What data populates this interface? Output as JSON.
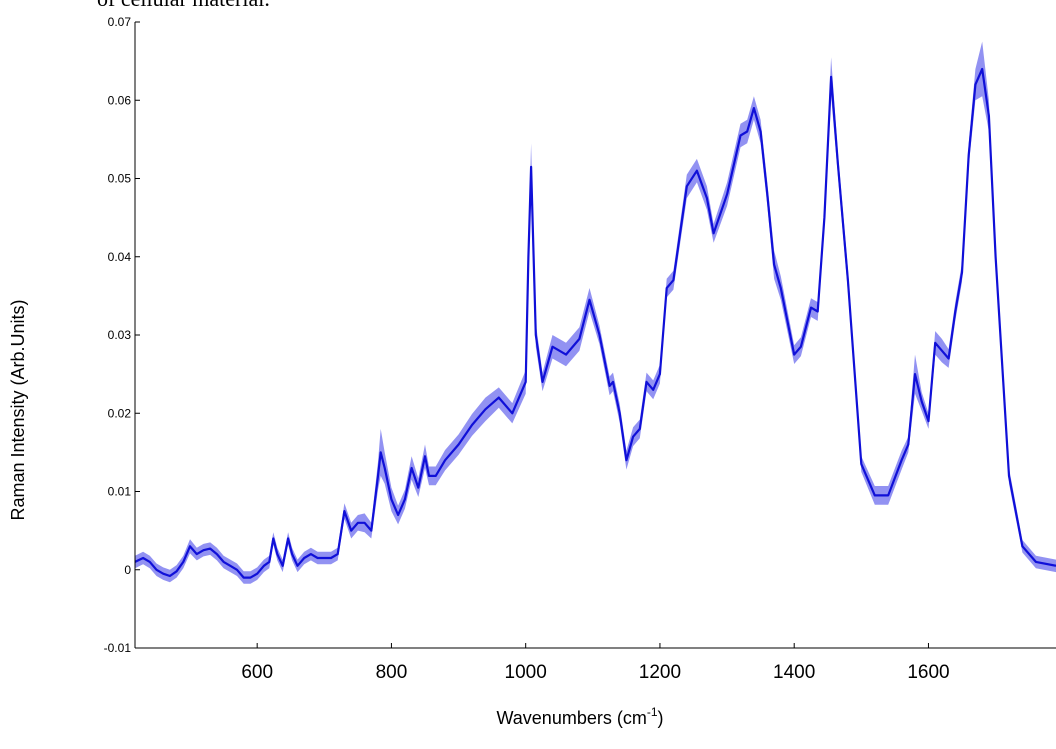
{
  "caption": "of cellular material.",
  "chart_data": {
    "type": "line",
    "title": "",
    "xlabel": "Wavenumbers (cm",
    "xlabel_superscript": "-1",
    "xlabel_suffix": ")",
    "ylabel": "Raman Intensity  (Arb.Units)",
    "xlim": [
      418,
      1790
    ],
    "ylim": [
      -0.01,
      0.07
    ],
    "x_ticks": [
      600,
      800,
      1000,
      1200,
      1400,
      1600
    ],
    "x_tick_labels": [
      "600",
      "800",
      "1000",
      "1200",
      "1400",
      "1600"
    ],
    "y_ticks": [
      -0.01,
      0,
      0.01,
      0.02,
      0.03,
      0.04,
      0.05,
      0.06,
      0.07
    ],
    "y_tick_labels": [
      "-0.01",
      "0",
      "0.01",
      "0.02",
      "0.03",
      "0.04",
      "0.05",
      "0.06",
      "0.07"
    ],
    "grid": false,
    "series": [
      {
        "line_color": "#1010d8",
        "band_color": "#7f7ff0",
        "x": [
          418,
          430,
          440,
          450,
          460,
          470,
          480,
          490,
          500,
          510,
          520,
          530,
          540,
          550,
          560,
          570,
          580,
          590,
          600,
          610,
          618,
          624,
          630,
          638,
          646,
          652,
          660,
          670,
          680,
          690,
          700,
          710,
          720,
          730,
          740,
          750,
          760,
          770,
          780,
          784,
          790,
          800,
          810,
          820,
          830,
          840,
          850,
          856,
          866,
          880,
          900,
          920,
          940,
          960,
          980,
          1000,
          1004,
          1008,
          1015,
          1025,
          1040,
          1060,
          1080,
          1095,
          1110,
          1125,
          1130,
          1140,
          1150,
          1160,
          1170,
          1180,
          1190,
          1200,
          1210,
          1220,
          1240,
          1255,
          1270,
          1280,
          1300,
          1320,
          1330,
          1340,
          1350,
          1360,
          1370,
          1380,
          1400,
          1410,
          1425,
          1435,
          1445,
          1455,
          1465,
          1480,
          1500,
          1520,
          1540,
          1560,
          1570,
          1580,
          1590,
          1600,
          1610,
          1620,
          1630,
          1640,
          1650,
          1660,
          1670,
          1680,
          1690,
          1700,
          1720,
          1740,
          1760,
          1790
        ],
        "y": [
          0.001,
          0.0015,
          0.001,
          0.0,
          -0.0005,
          -0.0008,
          -0.0002,
          0.001,
          0.003,
          0.002,
          0.0025,
          0.0027,
          0.002,
          0.001,
          0.0005,
          0.0,
          -0.001,
          -0.001,
          -0.0005,
          0.0005,
          0.001,
          0.004,
          0.002,
          0.0005,
          0.004,
          0.002,
          0.0005,
          0.0015,
          0.002,
          0.0015,
          0.0015,
          0.0015,
          0.002,
          0.0075,
          0.005,
          0.006,
          0.006,
          0.005,
          0.012,
          0.015,
          0.013,
          0.009,
          0.007,
          0.009,
          0.013,
          0.0105,
          0.0145,
          0.012,
          0.012,
          0.014,
          0.016,
          0.0185,
          0.0205,
          0.022,
          0.02,
          0.024,
          0.04,
          0.0515,
          0.03,
          0.024,
          0.0285,
          0.0275,
          0.0295,
          0.0345,
          0.03,
          0.0235,
          0.024,
          0.02,
          0.014,
          0.017,
          0.018,
          0.024,
          0.023,
          0.025,
          0.036,
          0.037,
          0.049,
          0.051,
          0.0475,
          0.043,
          0.048,
          0.0555,
          0.056,
          0.059,
          0.056,
          0.048,
          0.039,
          0.036,
          0.0275,
          0.0285,
          0.0335,
          0.033,
          0.045,
          0.063,
          0.052,
          0.037,
          0.0135,
          0.0095,
          0.0095,
          0.014,
          0.016,
          0.025,
          0.0215,
          0.019,
          0.029,
          0.028,
          0.027,
          0.033,
          0.038,
          0.053,
          0.062,
          0.064,
          0.058,
          0.04,
          0.012,
          0.003,
          0.001,
          0.0005
        ],
        "band": [
          0.0008,
          0.0008,
          0.0008,
          0.0008,
          0.0008,
          0.0008,
          0.0008,
          0.0008,
          0.0009,
          0.0008,
          0.0008,
          0.0008,
          0.0008,
          0.0008,
          0.0008,
          0.0008,
          0.0008,
          0.0008,
          0.0008,
          0.0008,
          0.0008,
          0.0008,
          0.0008,
          0.0008,
          0.0008,
          0.0008,
          0.0008,
          0.0008,
          0.0008,
          0.0008,
          0.0008,
          0.0008,
          0.0008,
          0.001,
          0.001,
          0.001,
          0.0012,
          0.001,
          0.0018,
          0.003,
          0.002,
          0.0015,
          0.0012,
          0.0012,
          0.0015,
          0.0012,
          0.0015,
          0.0012,
          0.0012,
          0.0013,
          0.0013,
          0.0014,
          0.0015,
          0.0013,
          0.0013,
          0.0015,
          0.002,
          0.003,
          0.0015,
          0.0012,
          0.0015,
          0.0015,
          0.0015,
          0.0015,
          0.0012,
          0.0012,
          0.0012,
          0.0012,
          0.0012,
          0.0012,
          0.0012,
          0.0012,
          0.0012,
          0.0012,
          0.0012,
          0.0012,
          0.0015,
          0.0015,
          0.0015,
          0.0012,
          0.0015,
          0.0015,
          0.0015,
          0.0015,
          0.0015,
          0.0015,
          0.0018,
          0.0015,
          0.0012,
          0.0012,
          0.0012,
          0.0012,
          0.0015,
          0.0025,
          0.0015,
          0.0015,
          0.001,
          0.0012,
          0.0012,
          0.0012,
          0.001,
          0.0025,
          0.0012,
          0.001,
          0.0015,
          0.0015,
          0.0012,
          0.0012,
          0.0012,
          0.0015,
          0.002,
          0.0035,
          0.002,
          0.0015,
          0.001,
          0.0008,
          0.0008,
          0.0008
        ]
      }
    ]
  }
}
